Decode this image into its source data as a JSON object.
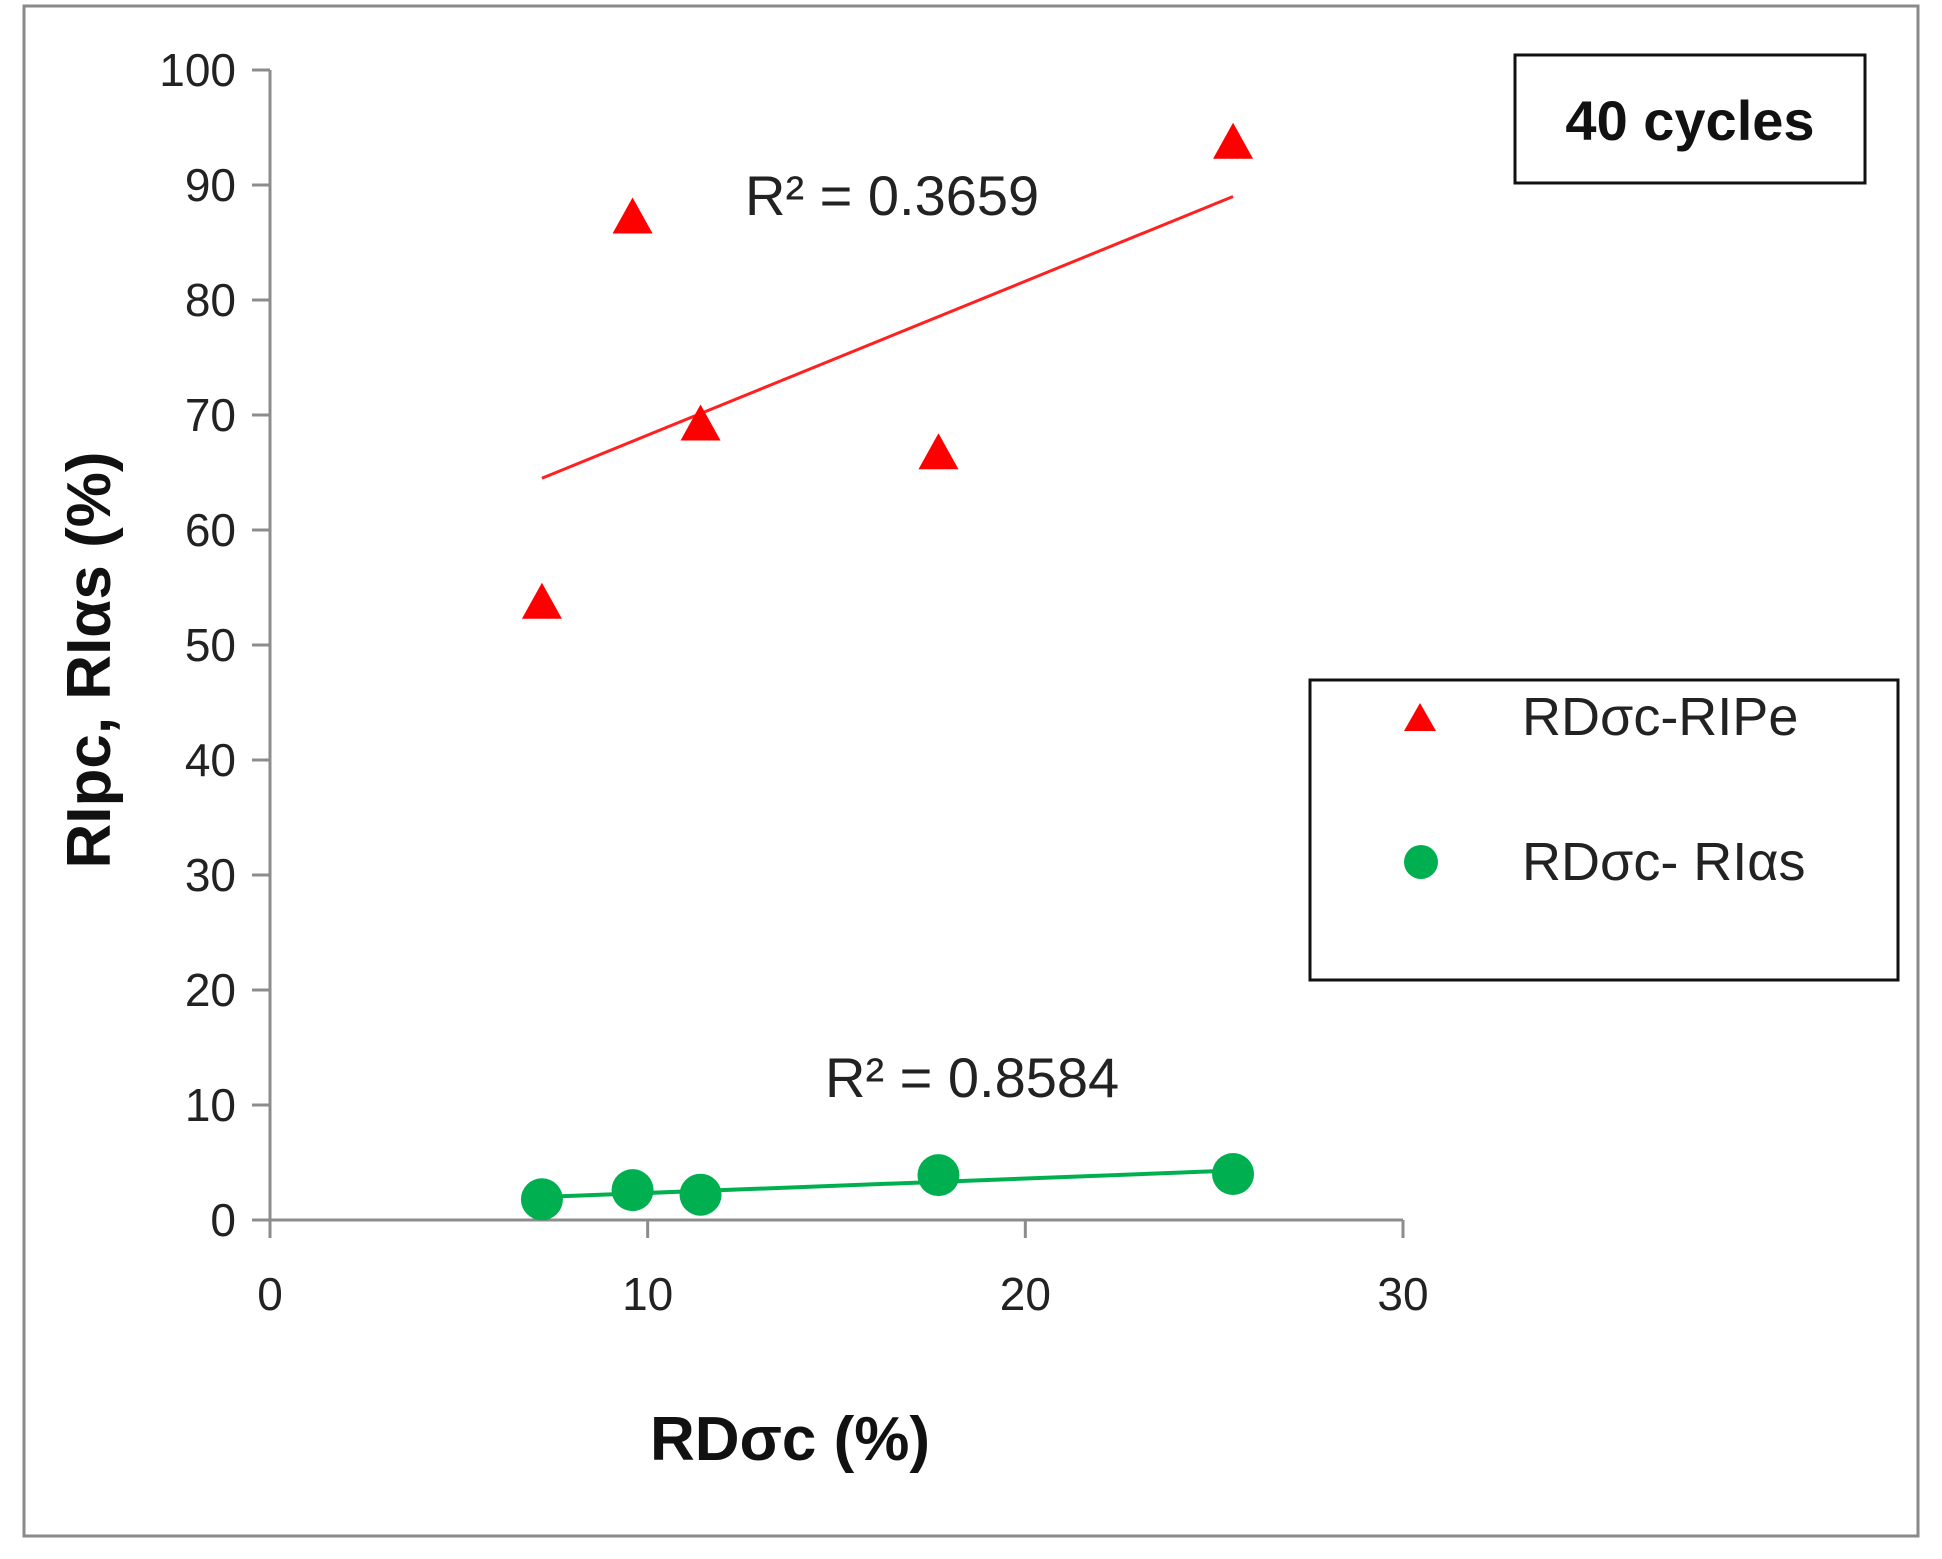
{
  "chart_data": {
    "type": "scatter",
    "title": "",
    "badge": "40 cycles",
    "xlabel": "RDσc (%)",
    "ylabel": "RIpc, RIαs (%)",
    "xlim": [
      0,
      30
    ],
    "ylim": [
      0,
      100
    ],
    "x_ticks": [
      0,
      10,
      20,
      30
    ],
    "y_ticks": [
      0,
      10,
      20,
      30,
      40,
      50,
      60,
      70,
      80,
      90,
      100
    ],
    "grid": false,
    "legend_position": "right",
    "series": [
      {
        "name": "RDσc-RIPe",
        "marker": "triangle",
        "color": "#ff0000",
        "x": [
          7.2,
          9.6,
          11.4,
          17.7,
          25.5
        ],
        "y": [
          53.5,
          87,
          69,
          66.5,
          93.5
        ],
        "trendline": {
          "x": [
            7.2,
            25.5
          ],
          "y": [
            64.5,
            89
          ],
          "r2_label": "R² = 0.3659",
          "color": "#ff2020"
        }
      },
      {
        "name": "RDσc- RIαs",
        "marker": "circle",
        "color": "#00b050",
        "x": [
          7.2,
          9.6,
          11.4,
          17.7,
          25.5
        ],
        "y": [
          1.8,
          2.6,
          2.2,
          3.9,
          4.0
        ],
        "trendline": {
          "x": [
            7.2,
            25.5
          ],
          "y": [
            2.0,
            4.3
          ],
          "r2_label": "R² = 0.8584",
          "color": "#00b050"
        }
      }
    ]
  }
}
